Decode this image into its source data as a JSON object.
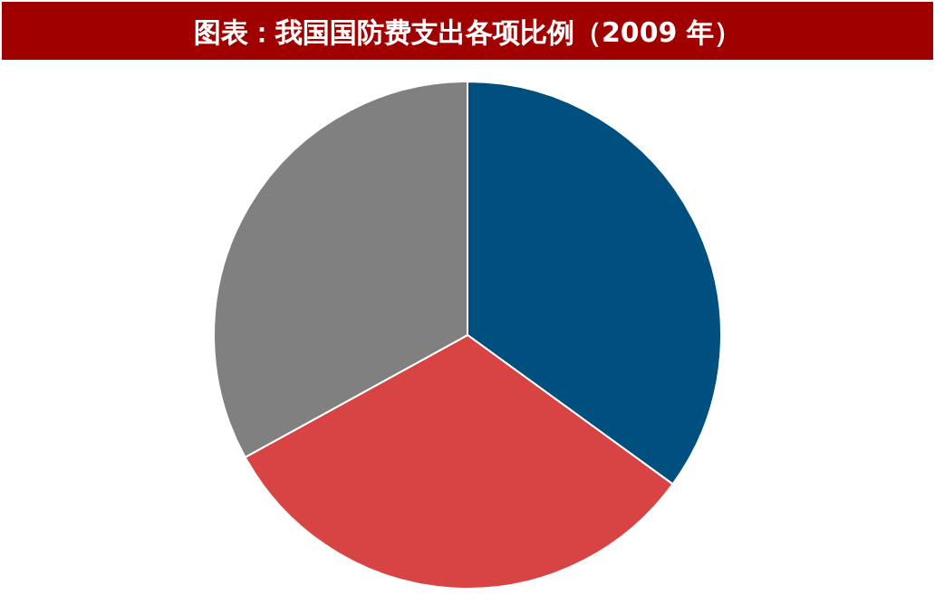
{
  "chart_data": {
    "type": "pie",
    "title": "图表：我国国防费支出各项比例（2009 年）",
    "categories": [
      null,
      null,
      null
    ],
    "values": [
      35,
      32,
      33
    ],
    "colors": [
      "#00507f",
      "#d84444",
      "#808080"
    ]
  }
}
